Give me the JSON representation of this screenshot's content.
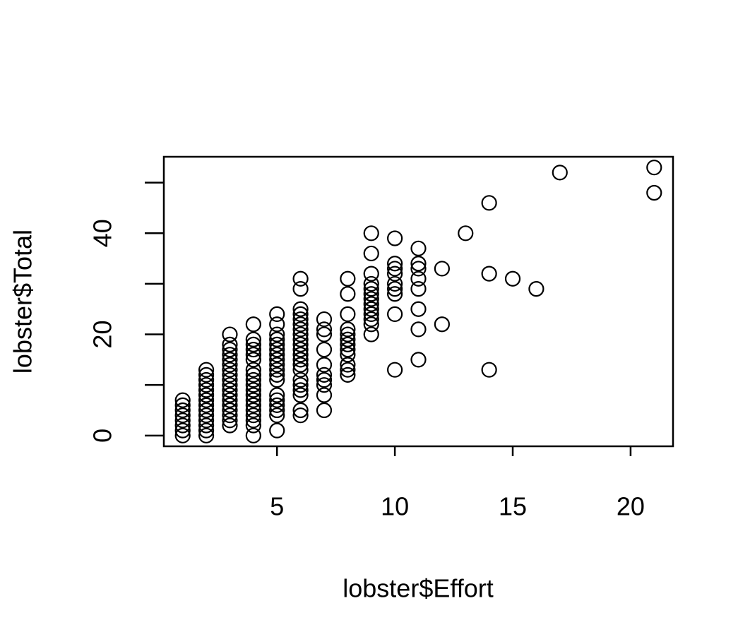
{
  "chart_data": {
    "type": "scatter",
    "xlabel": "lobster$Effort",
    "ylabel": "lobster$Total",
    "x": [
      1,
      1,
      1,
      1,
      1,
      1,
      1,
      1,
      2,
      2,
      2,
      2,
      2,
      2,
      2,
      2,
      2,
      2,
      2,
      2,
      2,
      2,
      3,
      3,
      3,
      3,
      3,
      3,
      3,
      3,
      3,
      3,
      3,
      3,
      3,
      3,
      3,
      3,
      3,
      3,
      4,
      4,
      4,
      4,
      4,
      4,
      4,
      4,
      4,
      4,
      4,
      4,
      4,
      4,
      4,
      4,
      4,
      4,
      4,
      5,
      5,
      5,
      5,
      5,
      5,
      5,
      5,
      5,
      5,
      5,
      5,
      5,
      5,
      5,
      5,
      5,
      5,
      6,
      6,
      6,
      6,
      6,
      6,
      6,
      6,
      6,
      6,
      6,
      6,
      6,
      6,
      6,
      6,
      6,
      6,
      6,
      6,
      6,
      7,
      7,
      7,
      7,
      7,
      7,
      7,
      7,
      7,
      7,
      8,
      8,
      8,
      8,
      8,
      8,
      8,
      8,
      8,
      8,
      8,
      8,
      9,
      9,
      9,
      9,
      9,
      9,
      9,
      9,
      9,
      9,
      9,
      9,
      9,
      10,
      10,
      10,
      10,
      10,
      10,
      10,
      10,
      10,
      11,
      11,
      11,
      11,
      11,
      11,
      11,
      11,
      12,
      12,
      13,
      14,
      14,
      14,
      15,
      16,
      17,
      21,
      21
    ],
    "y": [
      0,
      1,
      2,
      3,
      4,
      5,
      6,
      7,
      0,
      1,
      2,
      3,
      4,
      5,
      6,
      7,
      8,
      9,
      10,
      11,
      12,
      13,
      2,
      3,
      4,
      5,
      6,
      7,
      8,
      9,
      10,
      11,
      12,
      13,
      14,
      15,
      16,
      17,
      18,
      20,
      0,
      2,
      3,
      4,
      5,
      6,
      7,
      8,
      9,
      10,
      11,
      12,
      13,
      15,
      16,
      17,
      18,
      19,
      22,
      1,
      4,
      5,
      6,
      7,
      8,
      11,
      12,
      13,
      14,
      15,
      16,
      17,
      18,
      19,
      20,
      22,
      24,
      4,
      5,
      8,
      9,
      10,
      11,
      13,
      14,
      15,
      16,
      17,
      18,
      19,
      20,
      21,
      22,
      23,
      24,
      25,
      29,
      31,
      5,
      8,
      10,
      11,
      12,
      14,
      17,
      20,
      21,
      23,
      12,
      13,
      14,
      16,
      17,
      18,
      19,
      20,
      21,
      24,
      28,
      31,
      20,
      22,
      23,
      24,
      25,
      26,
      27,
      28,
      29,
      30,
      32,
      36,
      40,
      13,
      24,
      28,
      29,
      30,
      32,
      33,
      34,
      39,
      15,
      21,
      25,
      29,
      31,
      33,
      34,
      37,
      22,
      33,
      40,
      13,
      32,
      46,
      31,
      29,
      52,
      53,
      48
    ],
    "color": "#000000",
    "xlim": [
      0.2,
      21.8
    ],
    "ylim": [
      -2.12,
      55.12
    ],
    "xticks": [
      5,
      10,
      15,
      20
    ],
    "yticks": [
      0,
      {
        "value": 10,
        "label": null
      },
      20,
      {
        "value": 30,
        "label": null
      },
      40,
      {
        "value": 50,
        "label": null
      }
    ]
  }
}
